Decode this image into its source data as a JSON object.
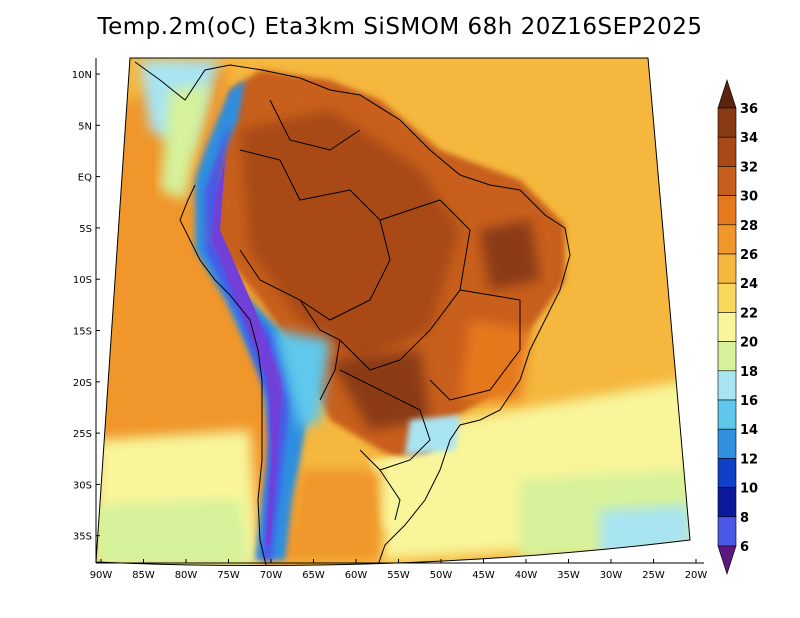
{
  "title": "Temp.2m(oC) Eta3km SiSMOM 68h 20Z16SEP2025",
  "map": {
    "variable": "2 m air temperature",
    "units": "oC",
    "region": "South America",
    "lat_labels": [
      "10N",
      "5N",
      "EQ",
      "5S",
      "10S",
      "15S",
      "20S",
      "25S",
      "30S",
      "35S"
    ],
    "lon_labels": [
      "90W",
      "85W",
      "80W",
      "75W",
      "70W",
      "65W",
      "60W",
      "55W",
      "50W",
      "45W",
      "40W",
      "35W",
      "30W",
      "25W",
      "20W"
    ]
  },
  "colorbar": {
    "labels": [
      "36",
      "34",
      "32",
      "30",
      "28",
      "26",
      "24",
      "22",
      "20",
      "18",
      "16",
      "14",
      "12",
      "10",
      "8",
      "6"
    ],
    "colors": [
      "#6b2a10",
      "#8a3a14",
      "#a84a18",
      "#c85e1c",
      "#e6781e",
      "#f0962a",
      "#f5b73e",
      "#f7d85a",
      "#f8f59a",
      "#d6f29a",
      "#a8e4f2",
      "#5ec8ec",
      "#2f8fe0",
      "#1040c8",
      "#0a1a9a",
      "#4a58e8",
      "#7040d8",
      "#9a30c0",
      "#6a1a8a"
    ],
    "top_color": "#5a2410",
    "bottom_color": "#5a1880"
  }
}
